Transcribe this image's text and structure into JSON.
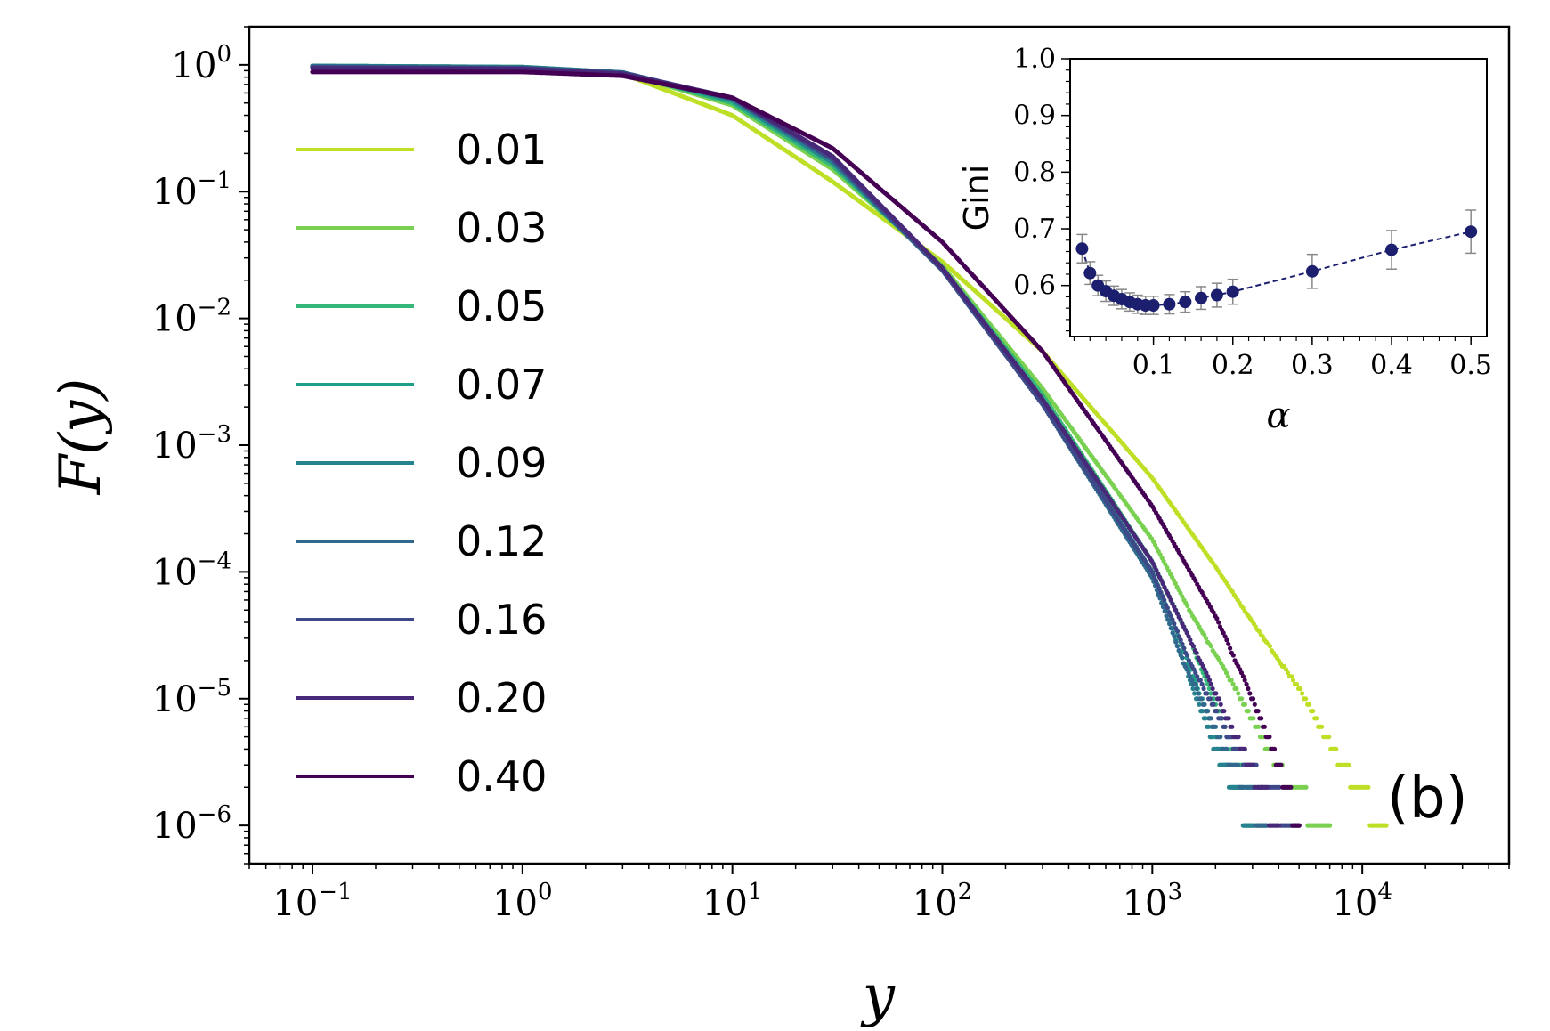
{
  "chart_data": [
    {
      "type": "line",
      "panel_label": "(b)",
      "xlabel": "y",
      "ylabel": "F(y)",
      "xscale": "log",
      "yscale": "log",
      "xlim": [
        0.05,
        50000
      ],
      "ylim": [
        5e-07,
        2
      ],
      "xticks": [
        {
          "base": "10",
          "exp": "−1"
        },
        {
          "base": "10",
          "exp": "0"
        },
        {
          "base": "10",
          "exp": "1"
        },
        {
          "base": "10",
          "exp": "2"
        },
        {
          "base": "10",
          "exp": "3"
        },
        {
          "base": "10",
          "exp": "4"
        }
      ],
      "yticks": [
        {
          "base": "10",
          "exp": "0"
        },
        {
          "base": "10",
          "exp": "−1"
        },
        {
          "base": "10",
          "exp": "−2"
        },
        {
          "base": "10",
          "exp": "−3"
        },
        {
          "base": "10",
          "exp": "−4"
        },
        {
          "base": "10",
          "exp": "−5"
        },
        {
          "base": "10",
          "exp": "−6"
        }
      ],
      "legend_position": "upper-left",
      "series": [
        {
          "name": "0.01",
          "color": "#bddf26",
          "knots": [
            [
              0.1,
              0.98
            ],
            [
              1,
              0.96
            ],
            [
              3,
              0.85
            ],
            [
              10,
              0.4
            ],
            [
              30,
              0.12
            ],
            [
              100,
              0.028
            ],
            [
              300,
              0.0055
            ],
            [
              1000,
              0.00055
            ],
            [
              2000,
              0.00011
            ],
            [
              3000,
              4e-05
            ],
            [
              5000,
              1.2e-05
            ],
            [
              8000,
              3e-06
            ],
            [
              13000,
              1e-06
            ]
          ]
        },
        {
          "name": "0.03",
          "color": "#7ad151",
          "knots": [
            [
              0.1,
              0.98
            ],
            [
              1,
              0.96
            ],
            [
              3,
              0.87
            ],
            [
              10,
              0.48
            ],
            [
              30,
              0.15
            ],
            [
              100,
              0.026
            ],
            [
              300,
              0.0028
            ],
            [
              1000,
              0.00018
            ],
            [
              1500,
              5e-05
            ],
            [
              2500,
              1.2e-05
            ],
            [
              4500,
              2e-06
            ],
            [
              7000,
              1e-06
            ]
          ]
        },
        {
          "name": "0.05",
          "color": "#35b779",
          "knots": [
            [
              0.1,
              0.98
            ],
            [
              1,
              0.96
            ],
            [
              3,
              0.87
            ],
            [
              10,
              0.5
            ],
            [
              30,
              0.16
            ],
            [
              100,
              0.025
            ],
            [
              300,
              0.0025
            ],
            [
              1000,
              0.00012
            ],
            [
              1500,
              3e-05
            ],
            [
              2200,
              6e-06
            ],
            [
              3500,
              1e-06
            ]
          ]
        },
        {
          "name": "0.07",
          "color": "#1f9e89",
          "knots": [
            [
              0.1,
              0.98
            ],
            [
              1,
              0.96
            ],
            [
              3,
              0.87
            ],
            [
              10,
              0.52
            ],
            [
              30,
              0.17
            ],
            [
              100,
              0.025
            ],
            [
              300,
              0.0023
            ],
            [
              1000,
              0.0001
            ],
            [
              1400,
              2.5e-05
            ],
            [
              2000,
              5e-06
            ],
            [
              3000,
              1e-06
            ]
          ]
        },
        {
          "name": "0.09",
          "color": "#26828e",
          "knots": [
            [
              0.1,
              0.98
            ],
            [
              1,
              0.96
            ],
            [
              3,
              0.87
            ],
            [
              10,
              0.53
            ],
            [
              30,
              0.17
            ],
            [
              100,
              0.024
            ],
            [
              300,
              0.0022
            ],
            [
              1000,
              9e-05
            ],
            [
              1400,
              2e-05
            ],
            [
              2000,
              4e-06
            ],
            [
              3000,
              1e-06
            ]
          ]
        },
        {
          "name": "0.12",
          "color": "#31688e",
          "knots": [
            [
              0.1,
              0.97
            ],
            [
              1,
              0.95
            ],
            [
              3,
              0.87
            ],
            [
              10,
              0.54
            ],
            [
              30,
              0.18
            ],
            [
              100,
              0.024
            ],
            [
              300,
              0.0021
            ],
            [
              1000,
              9e-05
            ],
            [
              1400,
              2e-05
            ],
            [
              2200,
              4e-06
            ],
            [
              3500,
              1e-06
            ]
          ]
        },
        {
          "name": "0.16",
          "color": "#3e4989",
          "knots": [
            [
              0.1,
              0.96
            ],
            [
              1,
              0.94
            ],
            [
              3,
              0.86
            ],
            [
              10,
              0.55
            ],
            [
              30,
              0.18
            ],
            [
              100,
              0.024
            ],
            [
              300,
              0.0021
            ],
            [
              1000,
              0.0001
            ],
            [
              1500,
              2e-05
            ],
            [
              2500,
              4e-06
            ],
            [
              5000,
              1e-06
            ]
          ]
        },
        {
          "name": "0.20",
          "color": "#482878",
          "knots": [
            [
              0.1,
              0.94
            ],
            [
              1,
              0.93
            ],
            [
              3,
              0.85
            ],
            [
              10,
              0.55
            ],
            [
              30,
              0.19
            ],
            [
              100,
              0.025
            ],
            [
              300,
              0.0023
            ],
            [
              1000,
              0.00012
            ],
            [
              1500,
              3e-05
            ],
            [
              2500,
              5e-06
            ],
            [
              4000,
              1e-06
            ]
          ]
        },
        {
          "name": "0.40",
          "color": "#440154",
          "knots": [
            [
              0.1,
              0.88
            ],
            [
              1,
              0.88
            ],
            [
              3,
              0.82
            ],
            [
              10,
              0.55
            ],
            [
              30,
              0.22
            ],
            [
              100,
              0.04
            ],
            [
              300,
              0.0055
            ],
            [
              1000,
              0.00033
            ],
            [
              2000,
              4.5e-05
            ],
            [
              3000,
              1e-05
            ],
            [
              4000,
              3e-06
            ],
            [
              5000,
              1e-06
            ]
          ]
        }
      ]
    },
    {
      "type": "scatter",
      "role": "inset",
      "xlabel": "α",
      "ylabel": "Gini",
      "xlim": [
        -0.005,
        0.52
      ],
      "ylim": [
        0.51,
        1.0
      ],
      "xticks": [
        "0.1",
        "0.2",
        "0.3",
        "0.4",
        "0.5"
      ],
      "yticks": [
        "0.6",
        "0.7",
        "0.8",
        "0.9",
        "1.0"
      ],
      "color": "#1b1f6e",
      "errorbar_color": "#888888",
      "points": [
        {
          "x": 0.01,
          "y": 0.665,
          "err": 0.025
        },
        {
          "x": 0.02,
          "y": 0.622,
          "err": 0.02
        },
        {
          "x": 0.03,
          "y": 0.6,
          "err": 0.018
        },
        {
          "x": 0.04,
          "y": 0.59,
          "err": 0.018
        },
        {
          "x": 0.05,
          "y": 0.582,
          "err": 0.017
        },
        {
          "x": 0.06,
          "y": 0.576,
          "err": 0.017
        },
        {
          "x": 0.07,
          "y": 0.571,
          "err": 0.016
        },
        {
          "x": 0.08,
          "y": 0.567,
          "err": 0.016
        },
        {
          "x": 0.09,
          "y": 0.565,
          "err": 0.016
        },
        {
          "x": 0.1,
          "y": 0.565,
          "err": 0.016
        },
        {
          "x": 0.12,
          "y": 0.567,
          "err": 0.017
        },
        {
          "x": 0.14,
          "y": 0.571,
          "err": 0.018
        },
        {
          "x": 0.16,
          "y": 0.578,
          "err": 0.02
        },
        {
          "x": 0.18,
          "y": 0.583,
          "err": 0.021
        },
        {
          "x": 0.2,
          "y": 0.589,
          "err": 0.022
        },
        {
          "x": 0.3,
          "y": 0.625,
          "err": 0.03
        },
        {
          "x": 0.4,
          "y": 0.663,
          "err": 0.034
        },
        {
          "x": 0.5,
          "y": 0.695,
          "err": 0.038
        }
      ]
    }
  ]
}
